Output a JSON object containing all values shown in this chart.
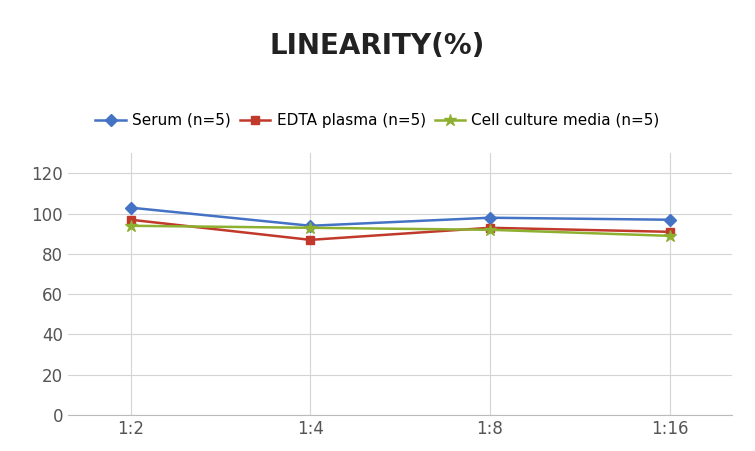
{
  "title": "LINEARITY(%)",
  "x_labels": [
    "1:2",
    "1:4",
    "1:8",
    "1:16"
  ],
  "x_positions": [
    0,
    1,
    2,
    3
  ],
  "series": [
    {
      "label": "Serum (n=5)",
      "values": [
        103,
        94,
        98,
        97
      ],
      "color": "#4472C4",
      "marker": "D",
      "markersize": 6
    },
    {
      "label": "EDTA plasma (n=5)",
      "values": [
        97,
        87,
        93,
        91
      ],
      "color": "#C0392B",
      "marker": "s",
      "markersize": 6
    },
    {
      "label": "Cell culture media (n=5)",
      "values": [
        94,
        93,
        92,
        89
      ],
      "color": "#8DB030",
      "marker": "*",
      "markersize": 9
    }
  ],
  "ylim": [
    0,
    130
  ],
  "yticks": [
    0,
    20,
    40,
    60,
    80,
    100,
    120
  ],
  "background_color": "#ffffff",
  "title_fontsize": 20,
  "legend_fontsize": 11,
  "tick_fontsize": 12,
  "grid_color": "#d4d4d4",
  "axis_color": "#bbbbbb"
}
